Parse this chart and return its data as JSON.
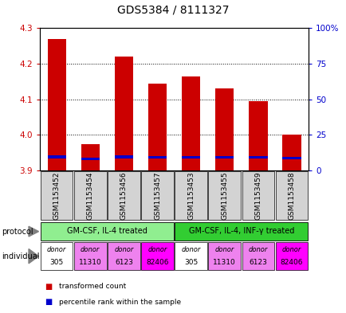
{
  "title": "GDS5384 / 8111327",
  "samples": [
    "GSM1153452",
    "GSM1153454",
    "GSM1153456",
    "GSM1153457",
    "GSM1153453",
    "GSM1153455",
    "GSM1153459",
    "GSM1153458"
  ],
  "red_values": [
    4.27,
    3.975,
    4.22,
    4.145,
    4.165,
    4.13,
    4.095,
    4.0
  ],
  "blue_values": [
    3.935,
    3.93,
    3.935,
    3.933,
    3.934,
    3.933,
    3.933,
    3.932
  ],
  "base": 3.9,
  "ylim_left": [
    3.9,
    4.3
  ],
  "ylim_right": [
    0,
    100
  ],
  "yticks_left": [
    3.9,
    4.0,
    4.1,
    4.2,
    4.3
  ],
  "yticks_right": [
    0,
    25,
    50,
    75,
    100
  ],
  "ytick_labels_right": [
    "0",
    "25",
    "50",
    "75",
    "100%"
  ],
  "protocol_groups": [
    {
      "label": "GM-CSF, IL-4 treated",
      "start": 0,
      "end": 4,
      "color": "#90EE90"
    },
    {
      "label": "GM-CSF, IL-4, INF-γ treated",
      "start": 4,
      "end": 8,
      "color": "#32CD32"
    }
  ],
  "ind_colors": [
    "#FFFFFF",
    "#EE82EE",
    "#EE82EE",
    "#FF00FF",
    "#FFFFFF",
    "#EE82EE",
    "#EE82EE",
    "#FF00FF"
  ],
  "ind_line2": [
    "305",
    "11310",
    "6123",
    "82406",
    "305",
    "11310",
    "6123",
    "82406"
  ],
  "bar_color_red": "#CC0000",
  "bar_color_blue": "#0000CC",
  "bar_width": 0.55,
  "tick_color_left": "#CC0000",
  "tick_color_right": "#0000CC",
  "grid_color": "#000000",
  "bg_color": "#FFFFFF",
  "protocol_label": "protocol",
  "individual_label": "individual",
  "legend_red": "transformed count",
  "legend_blue": "percentile rank within the sample",
  "title_fontsize": 10,
  "axis_fontsize": 7.5,
  "sample_fontsize": 6.5,
  "label_fontsize": 7,
  "ind_fontsize": 6
}
